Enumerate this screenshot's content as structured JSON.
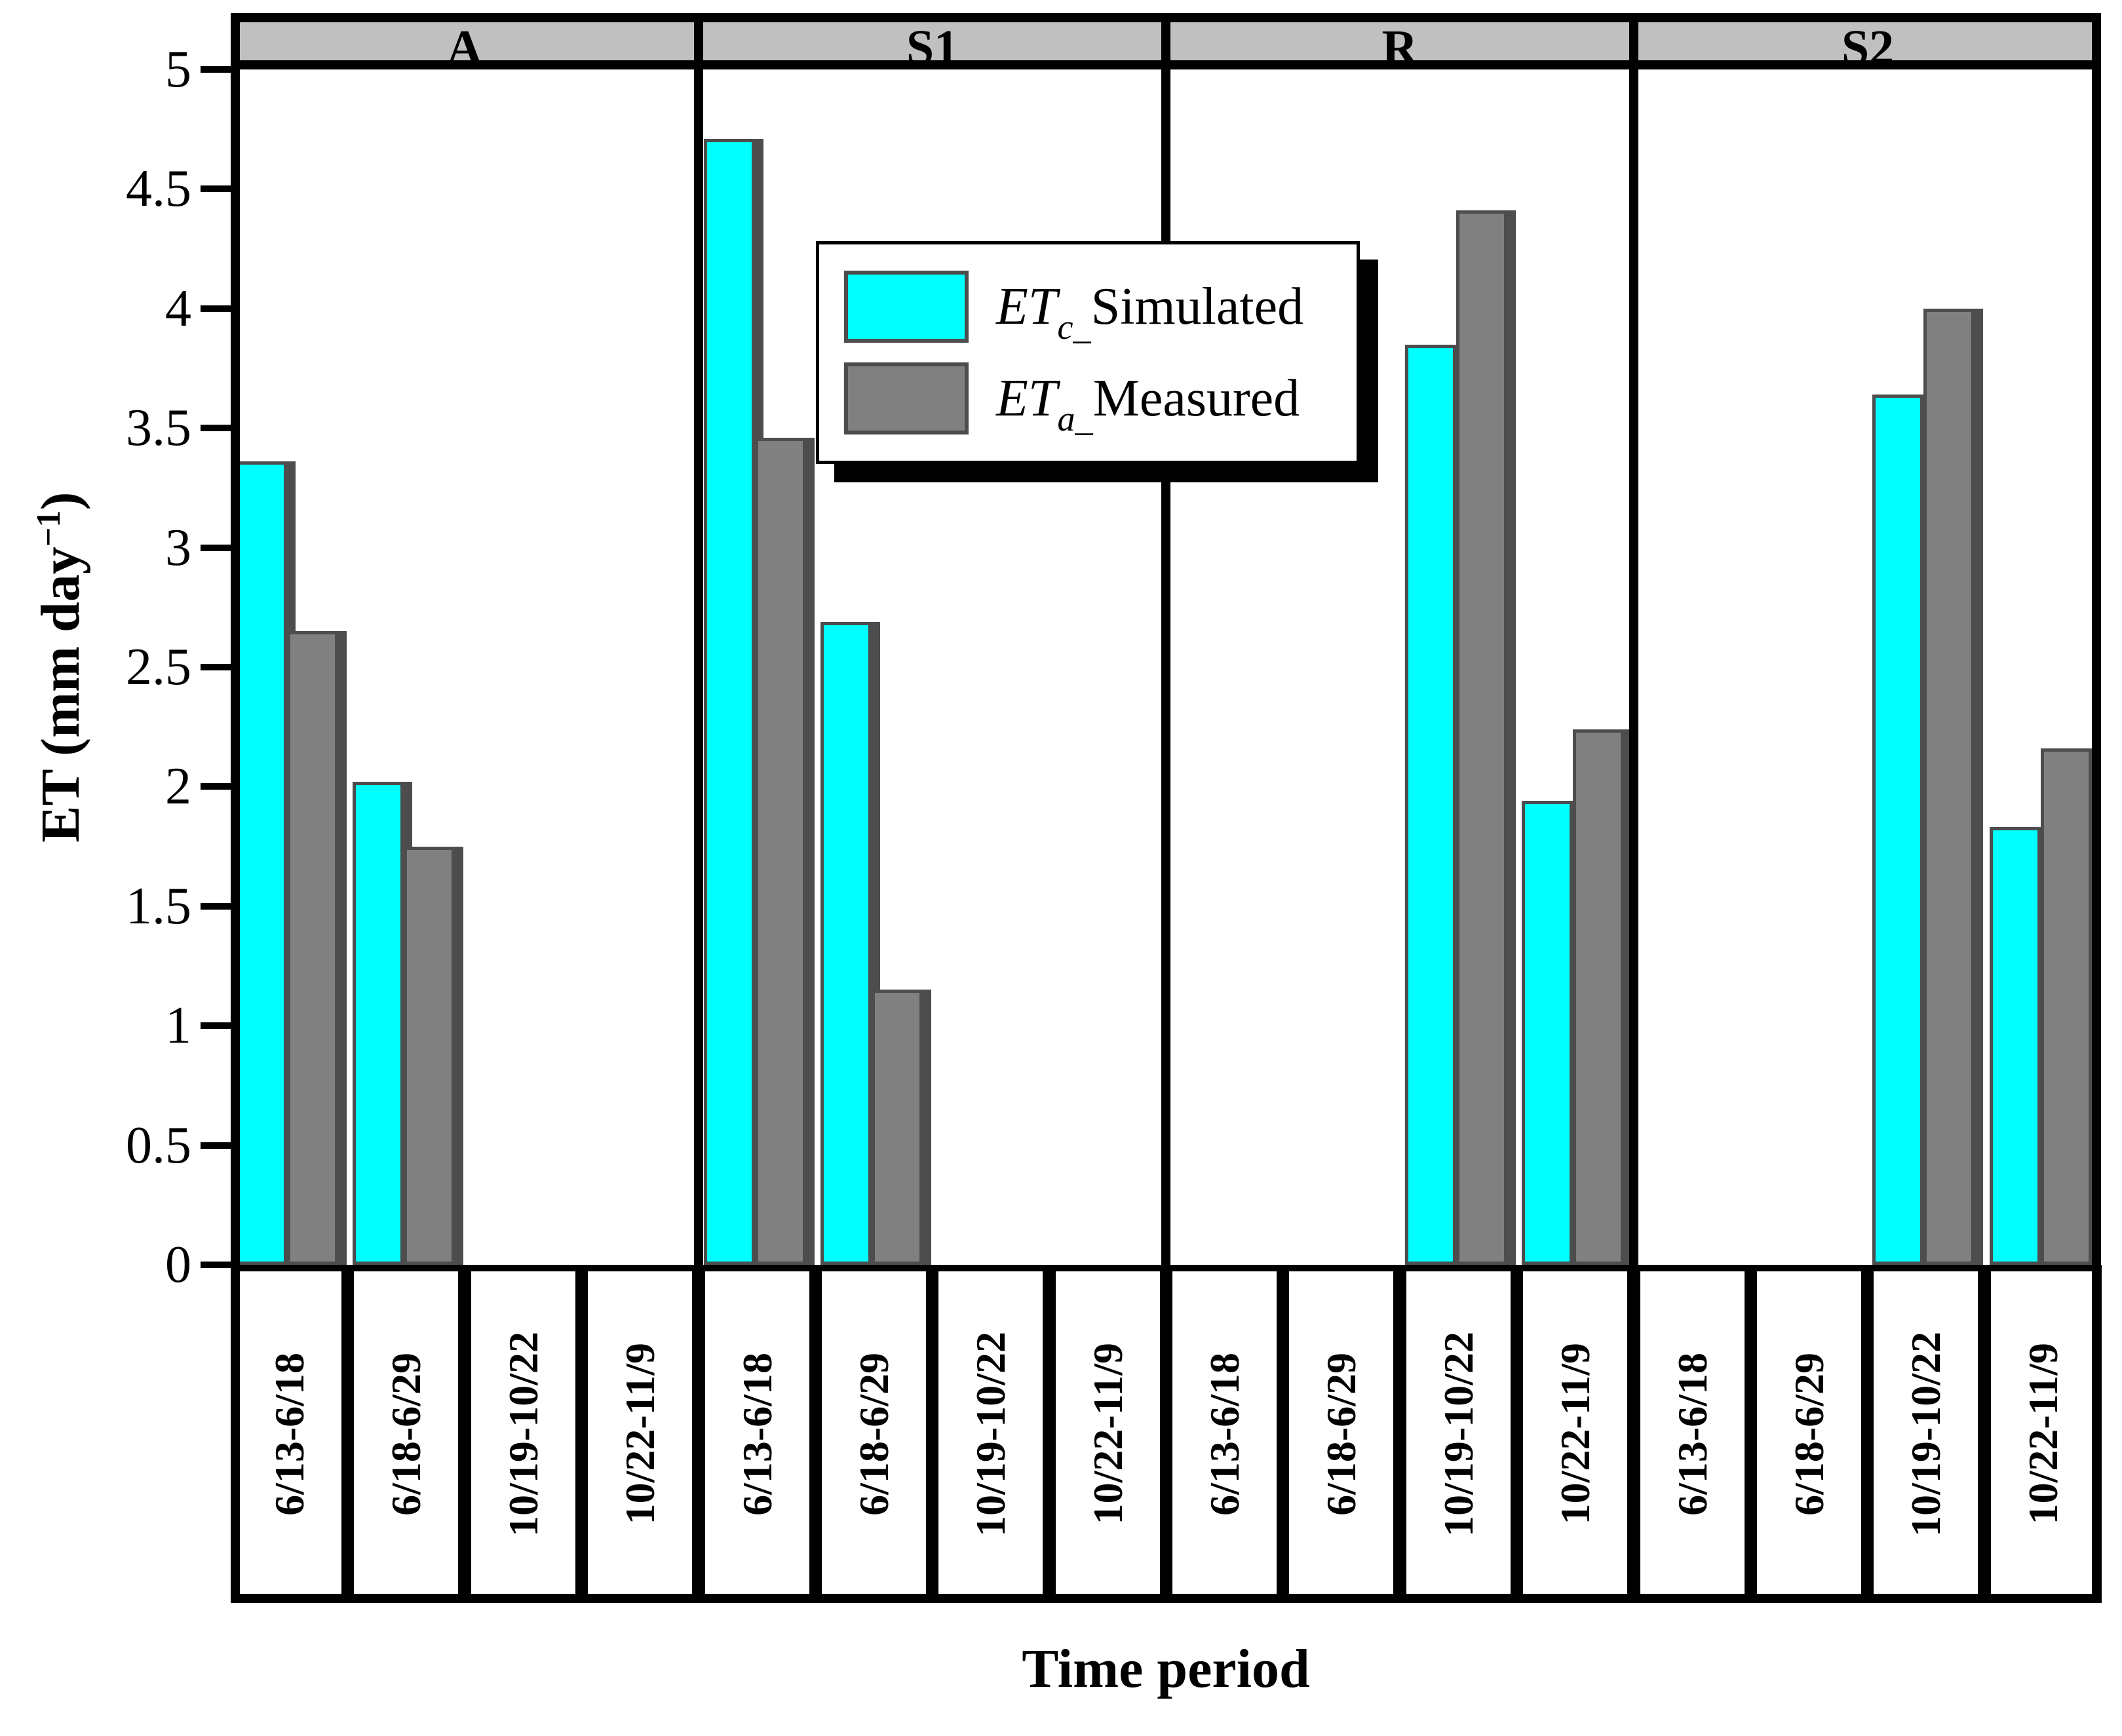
{
  "chart_data": {
    "type": "bar",
    "title": "",
    "xlabel": "Time period",
    "ylabel": "ET (mm day^-1)",
    "ylabel_parts": {
      "prefix": "ET (mm day",
      "sup": "−1",
      "suffix": ")"
    },
    "ylim": [
      0,
      5
    ],
    "ytick_step": 0.5,
    "yticks": [
      "0",
      "0.5",
      "1",
      "1.5",
      "2",
      "2.5",
      "3",
      "3.5",
      "4",
      "4.5",
      "5"
    ],
    "grid": false,
    "categories": [
      "6/13-6/18",
      "6/18-6/29",
      "10/19-10/22",
      "10/22-11/9"
    ],
    "panels": [
      {
        "label": "A",
        "series": [
          {
            "name": "ETc_Simulated",
            "values": [
              3.36,
              2.02,
              null,
              null
            ]
          },
          {
            "name": "ETa_Measured",
            "values": [
              2.65,
              1.75,
              null,
              null
            ]
          }
        ]
      },
      {
        "label": "S1",
        "series": [
          {
            "name": "ETc_Simulated",
            "values": [
              4.71,
              2.69,
              null,
              null
            ]
          },
          {
            "name": "ETa_Measured",
            "values": [
              3.46,
              1.15,
              null,
              null
            ]
          }
        ]
      },
      {
        "label": "R",
        "series": [
          {
            "name": "ETc_Simulated",
            "values": [
              null,
              null,
              3.85,
              1.94
            ]
          },
          {
            "name": "ETa_Measured",
            "values": [
              null,
              null,
              4.41,
              2.24
            ]
          }
        ]
      },
      {
        "label": "S2",
        "series": [
          {
            "name": "ETc_Simulated",
            "values": [
              null,
              null,
              3.64,
              1.83
            ]
          },
          {
            "name": "ETa_Measured",
            "values": [
              null,
              null,
              4.0,
              2.16
            ]
          }
        ]
      }
    ],
    "legend": {
      "position": "upper-center-left",
      "items": [
        {
          "prefix": "ET",
          "sub": "c_",
          "label": "Simulated",
          "color": "#00ffff"
        },
        {
          "prefix": "ET",
          "sub": "a_",
          "label": "Measured",
          "color": "#808080"
        }
      ]
    },
    "colors": {
      "simulated": "#00ffff",
      "measured": "#808080",
      "panel_header_bg": "#c0c0c0",
      "bar_border": "#4d4d4d",
      "frame": "#000000"
    }
  }
}
